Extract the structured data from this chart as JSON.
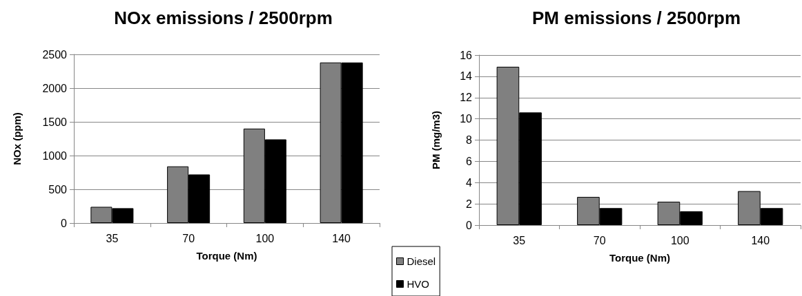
{
  "chart_data": [
    {
      "type": "bar",
      "title": "NOx emissions / 2500rpm",
      "xlabel": "Torque (Nm)",
      "ylabel": "NOx (ppm)",
      "categories": [
        "35",
        "70",
        "100",
        "140"
      ],
      "series": [
        {
          "color": "#808080",
          "values": [
            240,
            840,
            1400,
            2380
          ]
        },
        {
          "color": "#000000",
          "values": [
            220,
            720,
            1240,
            2380
          ]
        }
      ],
      "ylim": [
        0,
        2500
      ],
      "yticks": [
        0,
        500,
        1000,
        1500,
        2000,
        2500
      ],
      "grid": "y",
      "legend": false
    },
    {
      "type": "bar",
      "title": "PM emissions / 2500rpm",
      "xlabel": "Torque (Nm)",
      "ylabel": "PM (mg/m3)",
      "categories": [
        "35",
        "70",
        "100",
        "140"
      ],
      "series": [
        {
          "name": "Diesel",
          "color": "#808080",
          "values": [
            14.9,
            2.65,
            2.2,
            3.2
          ]
        },
        {
          "name": "HVO",
          "color": "#000000",
          "values": [
            10.6,
            1.6,
            1.3,
            1.6
          ]
        }
      ],
      "ylim": [
        0,
        16
      ],
      "yticks": [
        0,
        2,
        4,
        6,
        8,
        10,
        12,
        14,
        16
      ],
      "grid": "y",
      "legend": "bottom left"
    }
  ]
}
